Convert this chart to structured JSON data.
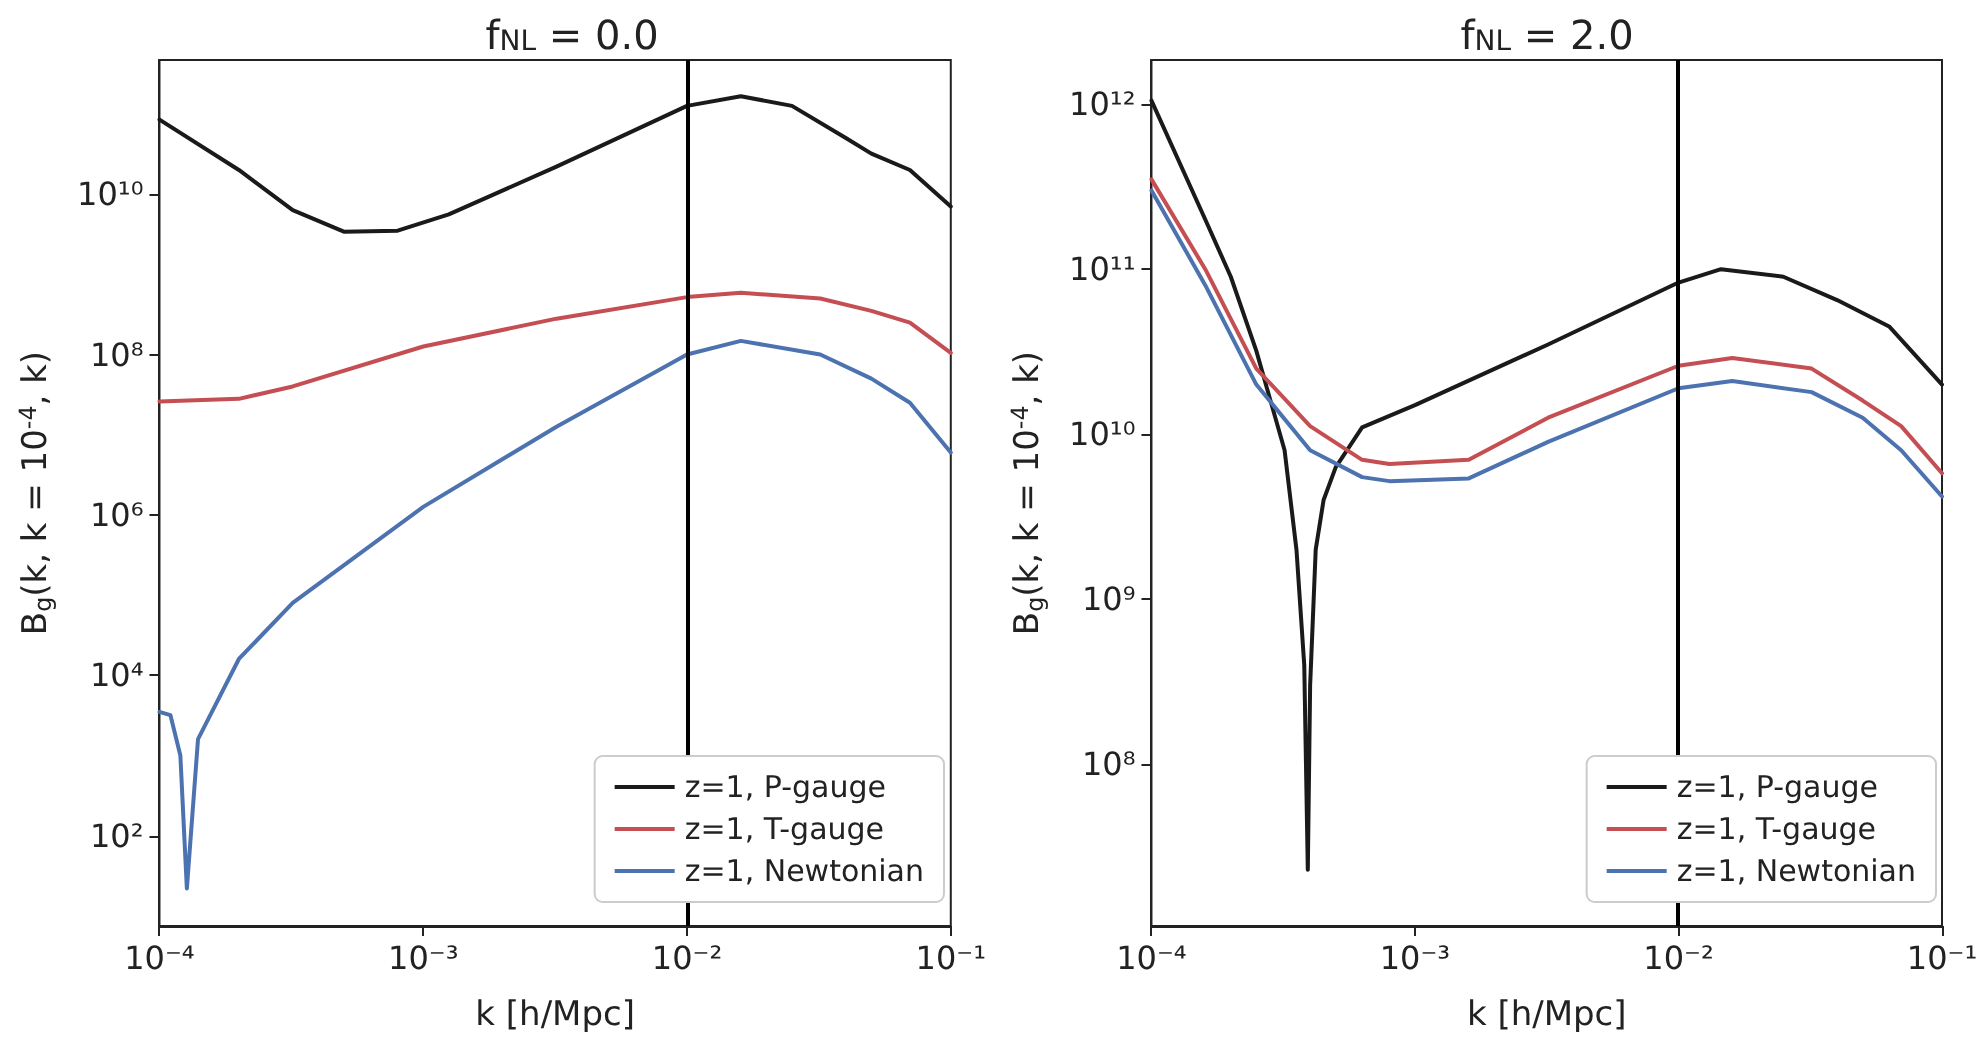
{
  "chart_data": [
    {
      "type": "line",
      "title": "f$_{NL}$ = 0.0",
      "xlabel": "k [h/Mpc]",
      "ylabel": "B$_{g}$(k, k = 10$^{-4}$, k)",
      "log": "xy",
      "grid": false,
      "legend": "bottom right",
      "line_style": "solid",
      "marker": "none",
      "xlim": [
        0.0001,
        0.1
      ],
      "xticks": [
        {
          "value": 0.0001,
          "label": "10⁻⁴"
        },
        {
          "value": 0.001,
          "label": "10⁻³"
        },
        {
          "value": 0.01,
          "label": "10⁻²"
        },
        {
          "value": 0.1,
          "label": "10⁻¹"
        }
      ],
      "ylim": [
        7.5,
        470000000000
      ],
      "yticks": [
        {
          "value": 100,
          "label": "10²"
        },
        {
          "value": 10000,
          "label": "10⁴"
        },
        {
          "value": 1000000,
          "label": "10⁶"
        },
        {
          "value": 100000000,
          "label": "10⁸"
        },
        {
          "value": 10000000000,
          "label": "10¹⁰"
        }
      ],
      "ref_lines": [
        {
          "axis": "x",
          "value": 0.01,
          "color": "#000000"
        }
      ],
      "series": [
        {
          "name": "z=1, P-gauge",
          "color": "#1a1a1a",
          "x": [
            0.0001,
            0.0002,
            0.00032,
            0.0005,
            0.0008,
            0.00125,
            0.0032,
            0.01,
            0.016,
            0.025,
            0.04,
            0.05,
            0.07,
            0.1
          ],
          "values": [
            85000000000,
            20000000000,
            6300000000,
            3400000000,
            3500000000,
            5600000000,
            22000000000,
            126000000000,
            166000000000,
            126000000000,
            50000000000,
            32000000000,
            20000000000,
            7000000000
          ]
        },
        {
          "name": "z=1, T-gauge",
          "color": "#c44e52",
          "x": [
            0.0001,
            0.0002,
            0.00032,
            0.001,
            0.0032,
            0.01,
            0.016,
            0.032,
            0.05,
            0.07,
            0.1
          ],
          "values": [
            26000000,
            28000000,
            40000000,
            126000000,
            280000000,
            520000000,
            590000000,
            500000000,
            350000000,
            250000000,
            105000000
          ]
        },
        {
          "name": "z=1, Newtonian",
          "color": "#4c72b0",
          "x": [
            0.0001,
            0.00011,
            0.00012,
            0.000127,
            0.00014,
            0.0002,
            0.00032,
            0.001,
            0.0032,
            0.01,
            0.016,
            0.032,
            0.05,
            0.07,
            0.1
          ],
          "values": [
            3500,
            3200,
            1000,
            22,
            1600,
            16000,
            80000,
            1260000,
            12600000,
            100000000,
            148000000,
            100000000,
            50000000,
            25000000,
            6000000
          ]
        }
      ]
    },
    {
      "type": "line",
      "title": "f$_{NL}$ = 2.0",
      "xlabel": "k [h/Mpc]",
      "ylabel": "B$_{g}$(k, k = 10$^{-4}$, k)",
      "log": "xy",
      "grid": false,
      "legend": "bottom right",
      "line_style": "solid",
      "marker": "none",
      "xlim": [
        0.0001,
        0.1
      ],
      "xticks": [
        {
          "value": 0.0001,
          "label": "10⁻⁴"
        },
        {
          "value": 0.001,
          "label": "10⁻³"
        },
        {
          "value": 0.01,
          "label": "10⁻²"
        },
        {
          "value": 0.1,
          "label": "10⁻¹"
        }
      ],
      "ylim": [
        10500000,
        1850000000000
      ],
      "yticks": [
        {
          "value": 100000000,
          "label": "10⁸"
        },
        {
          "value": 1000000000,
          "label": "10⁹"
        },
        {
          "value": 10000000000,
          "label": "10¹⁰"
        },
        {
          "value": 100000000000,
          "label": "10¹¹"
        },
        {
          "value": 1000000000000,
          "label": "10¹²"
        }
      ],
      "ref_lines": [
        {
          "axis": "x",
          "value": 0.01,
          "color": "#000000"
        }
      ],
      "series": [
        {
          "name": "z=1, P-gauge",
          "color": "#1a1a1a",
          "x": [
            0.0001,
            0.00016,
            0.0002,
            0.00025,
            0.00032,
            0.000355,
            0.00038,
            0.000392,
            0.0004,
            0.00042,
            0.00045,
            0.0005,
            0.00063,
            0.001,
            0.0032,
            0.01,
            0.0145,
            0.025,
            0.04,
            0.063,
            0.1
          ],
          "values": [
            1050000000000,
            200000000000,
            90000000000,
            32000000000,
            8000000000,
            2000000000,
            400000000,
            23000000,
            300000000,
            2000000000,
            4000000000,
            6300000000,
            11000000000,
            15000000000,
            35000000000,
            83000000000,
            100000000000,
            90000000000,
            65000000000,
            45000000000,
            20000000000
          ]
        },
        {
          "name": "z=1, T-gauge",
          "color": "#c44e52",
          "x": [
            0.0001,
            0.00016,
            0.00025,
            0.0004,
            0.00063,
            0.0008,
            0.0016,
            0.0032,
            0.01,
            0.016,
            0.032,
            0.05,
            0.07,
            0.1
          ],
          "values": [
            350000000000,
            100000000000,
            25000000000,
            11200000000,
            7000000000,
            6600000000,
            7000000000,
            12600000000,
            26000000000,
            29000000000,
            25000000000,
            16000000000,
            11200000000,
            5800000000
          ]
        },
        {
          "name": "z=1, Newtonian",
          "color": "#4c72b0",
          "x": [
            0.0001,
            0.00016,
            0.00025,
            0.0004,
            0.00063,
            0.0008,
            0.0016,
            0.0032,
            0.01,
            0.016,
            0.032,
            0.05,
            0.07,
            0.1
          ],
          "values": [
            300000000000,
            80000000000,
            20000000000,
            8000000000,
            5500000000,
            5200000000,
            5400000000,
            9000000000,
            19000000000,
            21000000000,
            18000000000,
            12600000000,
            8000000000,
            4200000000
          ]
        }
      ]
    }
  ]
}
